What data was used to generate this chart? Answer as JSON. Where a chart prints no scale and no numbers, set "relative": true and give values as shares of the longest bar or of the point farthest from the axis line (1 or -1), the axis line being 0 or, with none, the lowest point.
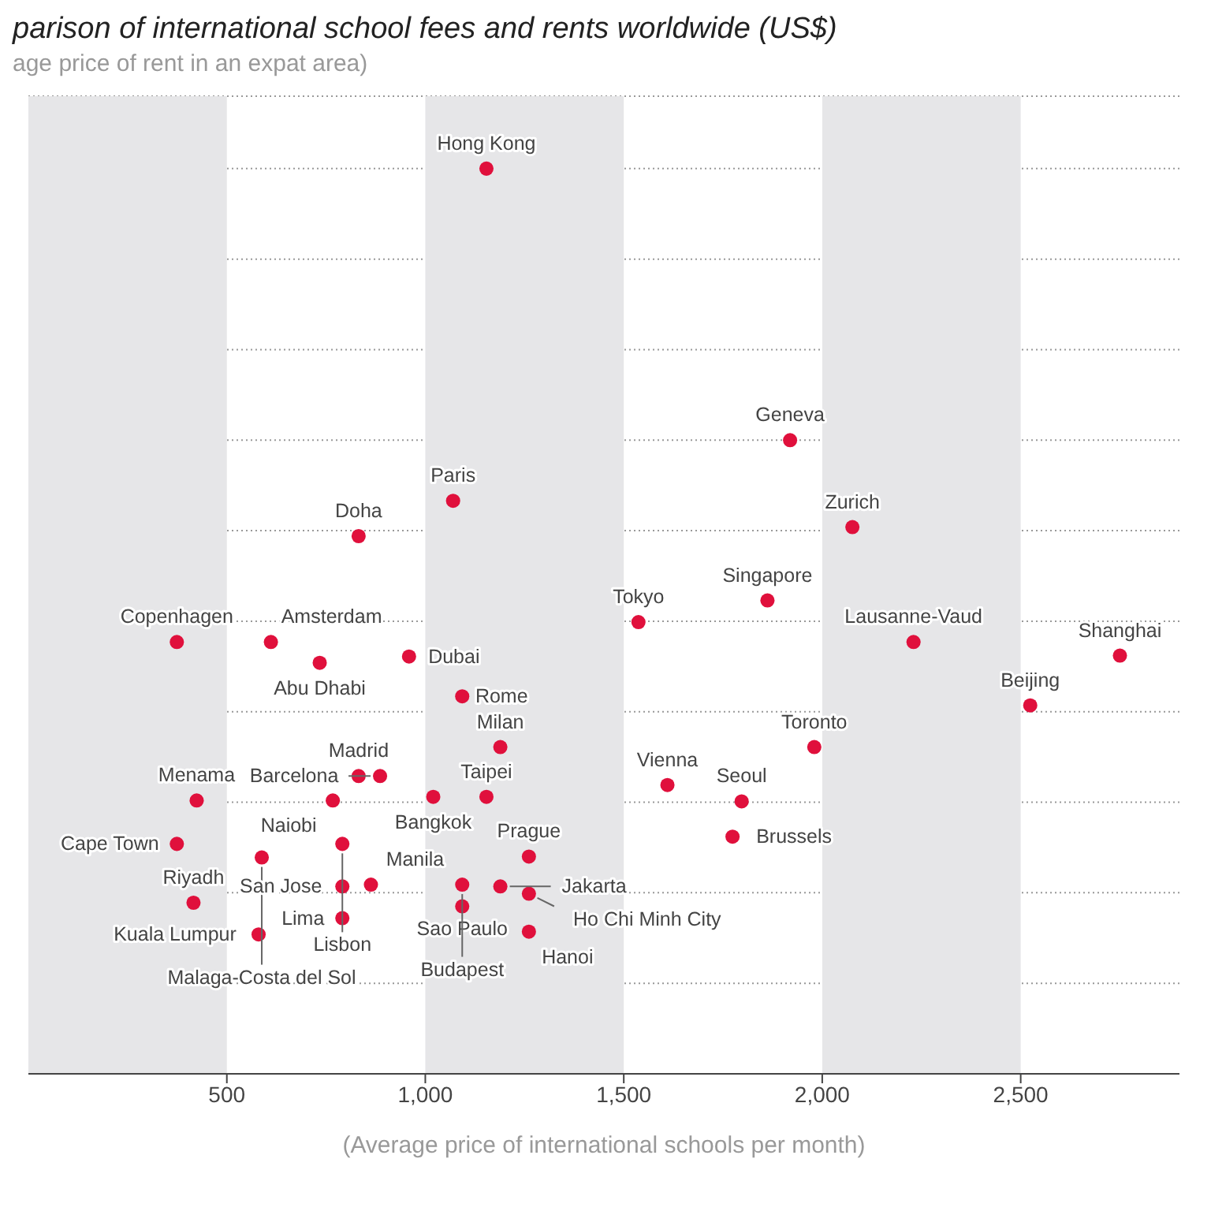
{
  "chart_data": {
    "type": "scatter",
    "title": "parison of international school fees and rents worldwide (US$)",
    "ylabel": "age price of rent in an expat area)",
    "xlabel": "(Average price of international schools per month)",
    "relative": true,
    "xlim": [
      0,
      2900
    ],
    "xticks": [
      {
        "value": 500,
        "label": "500"
      },
      {
        "value": 1000,
        "label": "1,000"
      },
      {
        "value": 1500,
        "label": "1,500"
      },
      {
        "value": 2000,
        "label": "2,000"
      },
      {
        "value": 2500,
        "label": "2,500"
      }
    ],
    "grid": "y",
    "marker": "circle",
    "legend": false,
    "bands": [
      {
        "axis": "x",
        "from": 0,
        "to": 500,
        "color": "#e6e6e8"
      },
      {
        "axis": "x",
        "from": 1000,
        "to": 1500,
        "color": "#e6e6e8"
      },
      {
        "axis": "x",
        "from": 2000,
        "to": 2500,
        "color": "#e6e6e8"
      }
    ],
    "series": [
      {
        "color": "#e0103c",
        "x": [
          1154,
          1919,
          2076,
          1070,
          832,
          1862,
          1537,
          2230,
          2750,
          2524,
          1980,
          1610,
          1797,
          1774,
          374,
          611,
          734,
          959,
          1093,
          1189,
          832,
          886,
          767,
          1020,
          1154,
          424,
          791,
          374,
          588,
          791,
          863,
          1093,
          1189,
          1261,
          1261,
          1093,
          416,
          791,
          580,
          1261
        ],
        "values": [
          1,
          0.7,
          0.604,
          0.633,
          0.594,
          0.523,
          0.499,
          0.477,
          0.462,
          0.407,
          0.361,
          0.319,
          0.301,
          0.262,
          0.477,
          0.477,
          0.454,
          0.461,
          0.417,
          0.361,
          0.329,
          0.329,
          0.302,
          0.306,
          0.306,
          0.302,
          0.254,
          0.254,
          0.239,
          0.207,
          0.209,
          0.209,
          0.207,
          0.24,
          0.199,
          0.185,
          0.189,
          0.172,
          0.154,
          0.157
        ]
      }
    ],
    "annotations": [
      {
        "text": "Hong Kong",
        "x": 1154,
        "y": 1
      },
      {
        "text": "Geneva",
        "x": 1919,
        "y": 0.7
      },
      {
        "text": "Zurich",
        "x": 2076,
        "y": 0.604
      },
      {
        "text": "Paris",
        "x": 1070,
        "y": 0.633
      },
      {
        "text": "Doha",
        "x": 832,
        "y": 0.594
      },
      {
        "text": "Singapore",
        "x": 1862,
        "y": 0.523
      },
      {
        "text": "Tokyo",
        "x": 1537,
        "y": 0.499
      },
      {
        "text": "Lausanne-Vaud",
        "x": 2230,
        "y": 0.477
      },
      {
        "text": "Shanghai",
        "x": 2750,
        "y": 0.462
      },
      {
        "text": "Beijing",
        "x": 2524,
        "y": 0.407
      },
      {
        "text": "Toronto",
        "x": 1980,
        "y": 0.361
      },
      {
        "text": "Vienna",
        "x": 1610,
        "y": 0.319
      },
      {
        "text": "Seoul",
        "x": 1797,
        "y": 0.301
      },
      {
        "text": "Brussels",
        "x": 1774,
        "y": 0.262
      },
      {
        "text": "Copenhagen",
        "x": 374,
        "y": 0.477
      },
      {
        "text": "Amsterdam",
        "x": 611,
        "y": 0.477
      },
      {
        "text": "Abu Dhabi",
        "x": 734,
        "y": 0.454
      },
      {
        "text": "Dubai",
        "x": 959,
        "y": 0.461
      },
      {
        "text": "Rome",
        "x": 1093,
        "y": 0.417
      },
      {
        "text": "Milan",
        "x": 1189,
        "y": 0.361
      },
      {
        "text": "Madrid",
        "x": 832,
        "y": 0.329
      },
      {
        "text": "Barcelona",
        "x": 886,
        "y": 0.329
      },
      {
        "text": "Naiobi",
        "x": 767,
        "y": 0.302
      },
      {
        "text": "Bangkok",
        "x": 1020,
        "y": 0.306
      },
      {
        "text": "Taipei",
        "x": 1154,
        "y": 0.306
      },
      {
        "text": "Menama",
        "x": 424,
        "y": 0.302
      },
      {
        "text": "Lisbon",
        "x": 791,
        "y": 0.254
      },
      {
        "text": "Cape Town",
        "x": 374,
        "y": 0.254
      },
      {
        "text": "Malaga-Costa del Sol",
        "x": 588,
        "y": 0.239
      },
      {
        "text": "San Jose",
        "x": 791,
        "y": 0.207
      },
      {
        "text": "Manila",
        "x": 863,
        "y": 0.209
      },
      {
        "text": "Sao Paulo",
        "x": 1093,
        "y": 0.209
      },
      {
        "text": "Jakarta",
        "x": 1189,
        "y": 0.207
      },
      {
        "text": "Prague",
        "x": 1261,
        "y": 0.24
      },
      {
        "text": "Ho Chi Minh City",
        "x": 1261,
        "y": 0.199
      },
      {
        "text": "Budapest",
        "x": 1093,
        "y": 0.185
      },
      {
        "text": "Riyadh",
        "x": 416,
        "y": 0.189
      },
      {
        "text": "Lima",
        "x": 791,
        "y": 0.172
      },
      {
        "text": "Kuala Lumpur",
        "x": 580,
        "y": 0.154
      },
      {
        "text": "Hanoi",
        "x": 1261,
        "y": 0.157
      }
    ]
  }
}
